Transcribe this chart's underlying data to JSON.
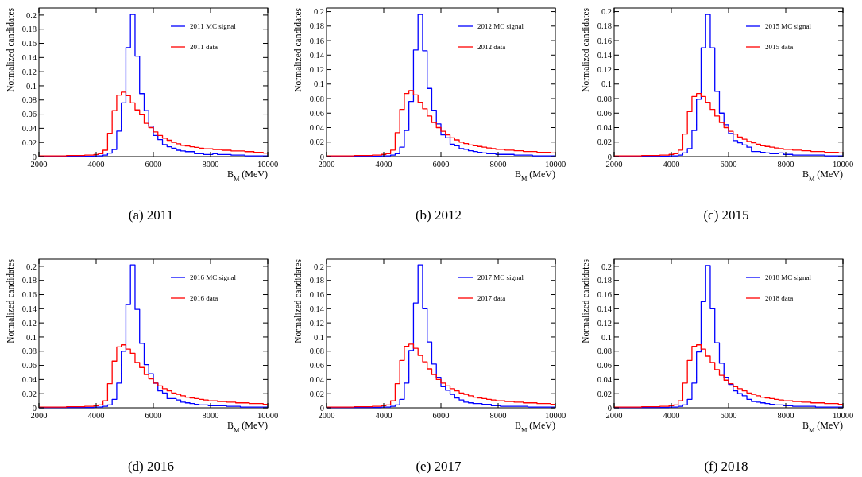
{
  "chart_data": [
    {
      "type": "histogram",
      "title": "(a) 2011",
      "xlabel": "B$_{M}$ (MeV)",
      "ylabel": "Normalized candidates",
      "bins": [
        2000,
        2160,
        2320,
        2480,
        2640,
        2800,
        2960,
        3120,
        3280,
        3440,
        3600,
        3760,
        3920,
        4080,
        4240,
        4400,
        4560,
        4720,
        4880,
        5040,
        5200,
        5360,
        5520,
        5680,
        5840,
        6000,
        6160,
        6320,
        6480,
        6640,
        6800,
        6960,
        7120,
        7280,
        7440,
        7600,
        7760,
        7920,
        8080,
        8240,
        8400,
        8560,
        8720,
        8880,
        9040,
        9200,
        9360,
        9520,
        9680,
        9840,
        10000
      ],
      "xlim": [
        2000,
        10000
      ],
      "xticks": [
        2000,
        4000,
        6000,
        8000,
        10000
      ],
      "ylim": [
        0,
        0.21
      ],
      "yticks": [
        0,
        0.02,
        0.04,
        0.06,
        0.08,
        0.1,
        0.12,
        0.14,
        0.16,
        0.18,
        0.2
      ],
      "legend": "top right",
      "series": [
        {
          "name": "2011 MC signal",
          "color": "#0000ff",
          "values": [
            0.0005,
            0.0005,
            0.0005,
            0.0005,
            0.0005,
            0.0005,
            0.0005,
            0.0005,
            0.0005,
            0.0005,
            0.0005,
            0.0005,
            0.001,
            0.001,
            0.002,
            0.005,
            0.01,
            0.036,
            0.076,
            0.154,
            0.201,
            0.142,
            0.089,
            0.065,
            0.043,
            0.03,
            0.024,
            0.017,
            0.014,
            0.012,
            0.009,
            0.008,
            0.007,
            0.007,
            0.004,
            0.004,
            0.003,
            0.003,
            0.004,
            0.003,
            0.003,
            0.003,
            0.002,
            0.002,
            0.002,
            0.001,
            0.001,
            0.001,
            0.001,
            0.001
          ]
        },
        {
          "name": "2011 data",
          "color": "#ff0000",
          "values": [
            0.001,
            0.001,
            0.001,
            0.001,
            0.001,
            0.001,
            0.0015,
            0.0015,
            0.0015,
            0.0015,
            0.002,
            0.002,
            0.003,
            0.004,
            0.009,
            0.033,
            0.065,
            0.087,
            0.091,
            0.086,
            0.076,
            0.066,
            0.059,
            0.047,
            0.041,
            0.035,
            0.03,
            0.026,
            0.023,
            0.02,
            0.018,
            0.016,
            0.015,
            0.014,
            0.013,
            0.012,
            0.011,
            0.011,
            0.01,
            0.01,
            0.009,
            0.009,
            0.008,
            0.008,
            0.008,
            0.007,
            0.007,
            0.006,
            0.006,
            0.005
          ]
        }
      ]
    },
    {
      "type": "histogram",
      "title": "(b) 2012",
      "xlabel": "B$_{M}$ (MeV)",
      "ylabel": "Normalized candidates",
      "bins": [
        2000,
        2160,
        2320,
        2480,
        2640,
        2800,
        2960,
        3120,
        3280,
        3440,
        3600,
        3760,
        3920,
        4080,
        4240,
        4400,
        4560,
        4720,
        4880,
        5040,
        5200,
        5360,
        5520,
        5680,
        5840,
        6000,
        6160,
        6320,
        6480,
        6640,
        6800,
        6960,
        7120,
        7280,
        7440,
        7600,
        7760,
        7920,
        8080,
        8240,
        8400,
        8560,
        8720,
        8880,
        9040,
        9200,
        9360,
        9520,
        9680,
        9840,
        10000
      ],
      "xlim": [
        2000,
        10000
      ],
      "xticks": [
        2000,
        4000,
        6000,
        8000,
        10000
      ],
      "ylim": [
        0,
        0.205
      ],
      "yticks": [
        0,
        0.02,
        0.04,
        0.06,
        0.08,
        0.1,
        0.12,
        0.14,
        0.16,
        0.18,
        0.2
      ],
      "legend": "top right",
      "series": [
        {
          "name": "2012 MC signal",
          "color": "#0000ff",
          "values": [
            0.0005,
            0.0005,
            0.0005,
            0.0005,
            0.0005,
            0.0005,
            0.0005,
            0.0005,
            0.0005,
            0.0005,
            0.0005,
            0.0005,
            0.001,
            0.001,
            0.002,
            0.004,
            0.013,
            0.036,
            0.076,
            0.147,
            0.196,
            0.146,
            0.094,
            0.064,
            0.045,
            0.03,
            0.026,
            0.017,
            0.015,
            0.011,
            0.01,
            0.008,
            0.007,
            0.006,
            0.005,
            0.004,
            0.004,
            0.003,
            0.003,
            0.003,
            0.003,
            0.002,
            0.002,
            0.002,
            0.002,
            0.001,
            0.001,
            0.001,
            0.001,
            0.001
          ]
        },
        {
          "name": "2012 data",
          "color": "#ff0000",
          "values": [
            0.001,
            0.001,
            0.001,
            0.001,
            0.001,
            0.001,
            0.0015,
            0.0015,
            0.0015,
            0.0015,
            0.002,
            0.002,
            0.003,
            0.004,
            0.009,
            0.033,
            0.065,
            0.087,
            0.091,
            0.085,
            0.075,
            0.066,
            0.056,
            0.047,
            0.04,
            0.035,
            0.03,
            0.026,
            0.023,
            0.02,
            0.018,
            0.016,
            0.015,
            0.014,
            0.013,
            0.012,
            0.011,
            0.01,
            0.01,
            0.009,
            0.009,
            0.008,
            0.008,
            0.007,
            0.007,
            0.007,
            0.006,
            0.006,
            0.006,
            0.005
          ]
        }
      ]
    },
    {
      "type": "histogram",
      "title": "(c) 2015",
      "xlabel": "B$_{M}$ (MeV)",
      "ylabel": "Normalized candidates",
      "bins": [
        2000,
        2160,
        2320,
        2480,
        2640,
        2800,
        2960,
        3120,
        3280,
        3440,
        3600,
        3760,
        3920,
        4080,
        4240,
        4400,
        4560,
        4720,
        4880,
        5040,
        5200,
        5360,
        5520,
        5680,
        5840,
        6000,
        6160,
        6320,
        6480,
        6640,
        6800,
        6960,
        7120,
        7280,
        7440,
        7600,
        7760,
        7920,
        8080,
        8240,
        8400,
        8560,
        8720,
        8880,
        9040,
        9200,
        9360,
        9520,
        9680,
        9840,
        10000
      ],
      "xlim": [
        2000,
        10000
      ],
      "xticks": [
        2000,
        4000,
        6000,
        8000,
        10000
      ],
      "ylim": [
        0,
        0.205
      ],
      "yticks": [
        0,
        0.02,
        0.04,
        0.06,
        0.08,
        0.1,
        0.12,
        0.14,
        0.16,
        0.18,
        0.2
      ],
      "legend": "top right",
      "series": [
        {
          "name": "2015 MC signal",
          "color": "#0000ff",
          "values": [
            0.0005,
            0.0005,
            0.0005,
            0.0005,
            0.0005,
            0.0005,
            0.0005,
            0.0005,
            0.0005,
            0.0005,
            0.0005,
            0.0005,
            0.001,
            0.001,
            0.002,
            0.005,
            0.011,
            0.036,
            0.079,
            0.15,
            0.196,
            0.15,
            0.09,
            0.06,
            0.044,
            0.032,
            0.022,
            0.019,
            0.016,
            0.013,
            0.007,
            0.007,
            0.006,
            0.005,
            0.004,
            0.004,
            0.005,
            0.003,
            0.003,
            0.002,
            0.002,
            0.002,
            0.002,
            0.002,
            0.002,
            0.002,
            0.001,
            0.001,
            0.001,
            0.001
          ]
        },
        {
          "name": "2015 data",
          "color": "#ff0000",
          "values": [
            0.001,
            0.001,
            0.001,
            0.001,
            0.001,
            0.001,
            0.0015,
            0.0015,
            0.0015,
            0.0015,
            0.002,
            0.002,
            0.003,
            0.004,
            0.009,
            0.031,
            0.062,
            0.083,
            0.087,
            0.083,
            0.075,
            0.065,
            0.056,
            0.047,
            0.04,
            0.035,
            0.031,
            0.027,
            0.024,
            0.021,
            0.019,
            0.017,
            0.015,
            0.014,
            0.013,
            0.012,
            0.011,
            0.01,
            0.01,
            0.009,
            0.009,
            0.008,
            0.008,
            0.007,
            0.007,
            0.007,
            0.006,
            0.006,
            0.006,
            0.005
          ]
        }
      ]
    },
    {
      "type": "histogram",
      "title": "(d) 2016",
      "xlabel": "B$_{M}$ (MeV)",
      "ylabel": "Normalized candidates",
      "bins": [
        2000,
        2160,
        2320,
        2480,
        2640,
        2800,
        2960,
        3120,
        3280,
        3440,
        3600,
        3760,
        3920,
        4080,
        4240,
        4400,
        4560,
        4720,
        4880,
        5040,
        5200,
        5360,
        5520,
        5680,
        5840,
        6000,
        6160,
        6320,
        6480,
        6640,
        6800,
        6960,
        7120,
        7280,
        7440,
        7600,
        7760,
        7920,
        8080,
        8240,
        8400,
        8560,
        8720,
        8880,
        9040,
        9200,
        9360,
        9520,
        9680,
        9840,
        10000
      ],
      "xlim": [
        2000,
        10000
      ],
      "xticks": [
        2000,
        4000,
        6000,
        8000,
        10000
      ],
      "ylim": [
        0,
        0.21
      ],
      "yticks": [
        0,
        0.02,
        0.04,
        0.06,
        0.08,
        0.1,
        0.12,
        0.14,
        0.16,
        0.18,
        0.2
      ],
      "legend": "top right",
      "series": [
        {
          "name": "2016 MC signal",
          "color": "#0000ff",
          "values": [
            0.0005,
            0.0005,
            0.0005,
            0.0005,
            0.0005,
            0.0005,
            0.0005,
            0.0005,
            0.0005,
            0.0005,
            0.0005,
            0.0005,
            0.001,
            0.001,
            0.002,
            0.004,
            0.012,
            0.035,
            0.08,
            0.146,
            0.202,
            0.139,
            0.091,
            0.061,
            0.048,
            0.035,
            0.024,
            0.021,
            0.013,
            0.013,
            0.011,
            0.008,
            0.007,
            0.006,
            0.005,
            0.004,
            0.004,
            0.003,
            0.003,
            0.003,
            0.003,
            0.002,
            0.002,
            0.002,
            0.001,
            0.001,
            0.001,
            0.001,
            0.001,
            0.001
          ]
        },
        {
          "name": "2016 data",
          "color": "#ff0000",
          "values": [
            0.001,
            0.001,
            0.001,
            0.001,
            0.001,
            0.001,
            0.0015,
            0.0015,
            0.0015,
            0.0015,
            0.002,
            0.002,
            0.003,
            0.004,
            0.01,
            0.034,
            0.066,
            0.086,
            0.089,
            0.083,
            0.077,
            0.064,
            0.057,
            0.047,
            0.041,
            0.035,
            0.031,
            0.027,
            0.024,
            0.021,
            0.019,
            0.017,
            0.015,
            0.014,
            0.013,
            0.012,
            0.011,
            0.01,
            0.01,
            0.009,
            0.009,
            0.008,
            0.008,
            0.007,
            0.007,
            0.007,
            0.006,
            0.006,
            0.006,
            0.005
          ]
        }
      ]
    },
    {
      "type": "histogram",
      "title": "(e) 2017",
      "xlabel": "B$_{M}$ (MeV)",
      "ylabel": "Normalized candidates",
      "bins": [
        2000,
        2160,
        2320,
        2480,
        2640,
        2800,
        2960,
        3120,
        3280,
        3440,
        3600,
        3760,
        3920,
        4080,
        4240,
        4400,
        4560,
        4720,
        4880,
        5040,
        5200,
        5360,
        5520,
        5680,
        5840,
        6000,
        6160,
        6320,
        6480,
        6640,
        6800,
        6960,
        7120,
        7280,
        7440,
        7600,
        7760,
        7920,
        8080,
        8240,
        8400,
        8560,
        8720,
        8880,
        9040,
        9200,
        9360,
        9520,
        9680,
        9840,
        10000
      ],
      "xlim": [
        2000,
        10000
      ],
      "xticks": [
        2000,
        4000,
        6000,
        8000,
        10000
      ],
      "ylim": [
        0,
        0.21
      ],
      "yticks": [
        0,
        0.02,
        0.04,
        0.06,
        0.08,
        0.1,
        0.12,
        0.14,
        0.16,
        0.18,
        0.2
      ],
      "legend": "top right",
      "series": [
        {
          "name": "2017 MC signal",
          "color": "#0000ff",
          "values": [
            0.0005,
            0.0005,
            0.0005,
            0.0005,
            0.0005,
            0.0005,
            0.0005,
            0.0005,
            0.0005,
            0.0005,
            0.0005,
            0.0005,
            0.001,
            0.001,
            0.002,
            0.004,
            0.012,
            0.035,
            0.081,
            0.148,
            0.202,
            0.14,
            0.093,
            0.062,
            0.043,
            0.03,
            0.025,
            0.019,
            0.014,
            0.011,
            0.008,
            0.007,
            0.006,
            0.006,
            0.005,
            0.005,
            0.003,
            0.003,
            0.002,
            0.002,
            0.002,
            0.002,
            0.002,
            0.002,
            0.001,
            0.001,
            0.001,
            0.001,
            0.001,
            0.001
          ]
        },
        {
          "name": "2017 data",
          "color": "#ff0000",
          "values": [
            0.001,
            0.001,
            0.001,
            0.001,
            0.001,
            0.001,
            0.0015,
            0.0015,
            0.0015,
            0.0015,
            0.002,
            0.002,
            0.003,
            0.004,
            0.01,
            0.034,
            0.067,
            0.087,
            0.09,
            0.084,
            0.074,
            0.065,
            0.055,
            0.047,
            0.04,
            0.035,
            0.031,
            0.027,
            0.024,
            0.021,
            0.019,
            0.017,
            0.015,
            0.014,
            0.013,
            0.012,
            0.011,
            0.01,
            0.01,
            0.009,
            0.009,
            0.008,
            0.008,
            0.007,
            0.007,
            0.007,
            0.006,
            0.006,
            0.006,
            0.005
          ]
        }
      ]
    },
    {
      "type": "histogram",
      "title": "(f) 2018",
      "xlabel": "B$_{M}$ (MeV)",
      "ylabel": "Normalized candidates",
      "bins": [
        2000,
        2160,
        2320,
        2480,
        2640,
        2800,
        2960,
        3120,
        3280,
        3440,
        3600,
        3760,
        3920,
        4080,
        4240,
        4400,
        4560,
        4720,
        4880,
        5040,
        5200,
        5360,
        5520,
        5680,
        5840,
        6000,
        6160,
        6320,
        6480,
        6640,
        6800,
        6960,
        7120,
        7280,
        7440,
        7600,
        7760,
        7920,
        8080,
        8240,
        8400,
        8560,
        8720,
        8880,
        9040,
        9200,
        9360,
        9520,
        9680,
        9840,
        10000
      ],
      "xlim": [
        2000,
        10000
      ],
      "xticks": [
        2000,
        4000,
        6000,
        8000,
        10000
      ],
      "ylim": [
        0,
        0.21
      ],
      "yticks": [
        0,
        0.02,
        0.04,
        0.06,
        0.08,
        0.1,
        0.12,
        0.14,
        0.16,
        0.18,
        0.2
      ],
      "legend": "top right",
      "series": [
        {
          "name": "2018 MC signal",
          "color": "#0000ff",
          "values": [
            0.0005,
            0.0005,
            0.0005,
            0.0005,
            0.0005,
            0.0005,
            0.0005,
            0.0005,
            0.0005,
            0.0005,
            0.0005,
            0.0005,
            0.001,
            0.001,
            0.002,
            0.004,
            0.012,
            0.035,
            0.079,
            0.15,
            0.201,
            0.14,
            0.092,
            0.063,
            0.043,
            0.033,
            0.024,
            0.02,
            0.017,
            0.012,
            0.009,
            0.008,
            0.007,
            0.006,
            0.005,
            0.004,
            0.004,
            0.003,
            0.003,
            0.002,
            0.002,
            0.002,
            0.002,
            0.002,
            0.001,
            0.001,
            0.001,
            0.001,
            0.001,
            0.001
          ]
        },
        {
          "name": "2018 data",
          "color": "#ff0000",
          "values": [
            0.001,
            0.001,
            0.001,
            0.001,
            0.001,
            0.001,
            0.0015,
            0.0015,
            0.0015,
            0.0015,
            0.002,
            0.002,
            0.003,
            0.004,
            0.01,
            0.035,
            0.067,
            0.087,
            0.089,
            0.083,
            0.073,
            0.064,
            0.054,
            0.046,
            0.039,
            0.034,
            0.03,
            0.027,
            0.024,
            0.021,
            0.019,
            0.017,
            0.015,
            0.014,
            0.013,
            0.012,
            0.011,
            0.01,
            0.01,
            0.009,
            0.009,
            0.008,
            0.008,
            0.007,
            0.007,
            0.007,
            0.006,
            0.006,
            0.006,
            0.005
          ]
        }
      ]
    }
  ]
}
